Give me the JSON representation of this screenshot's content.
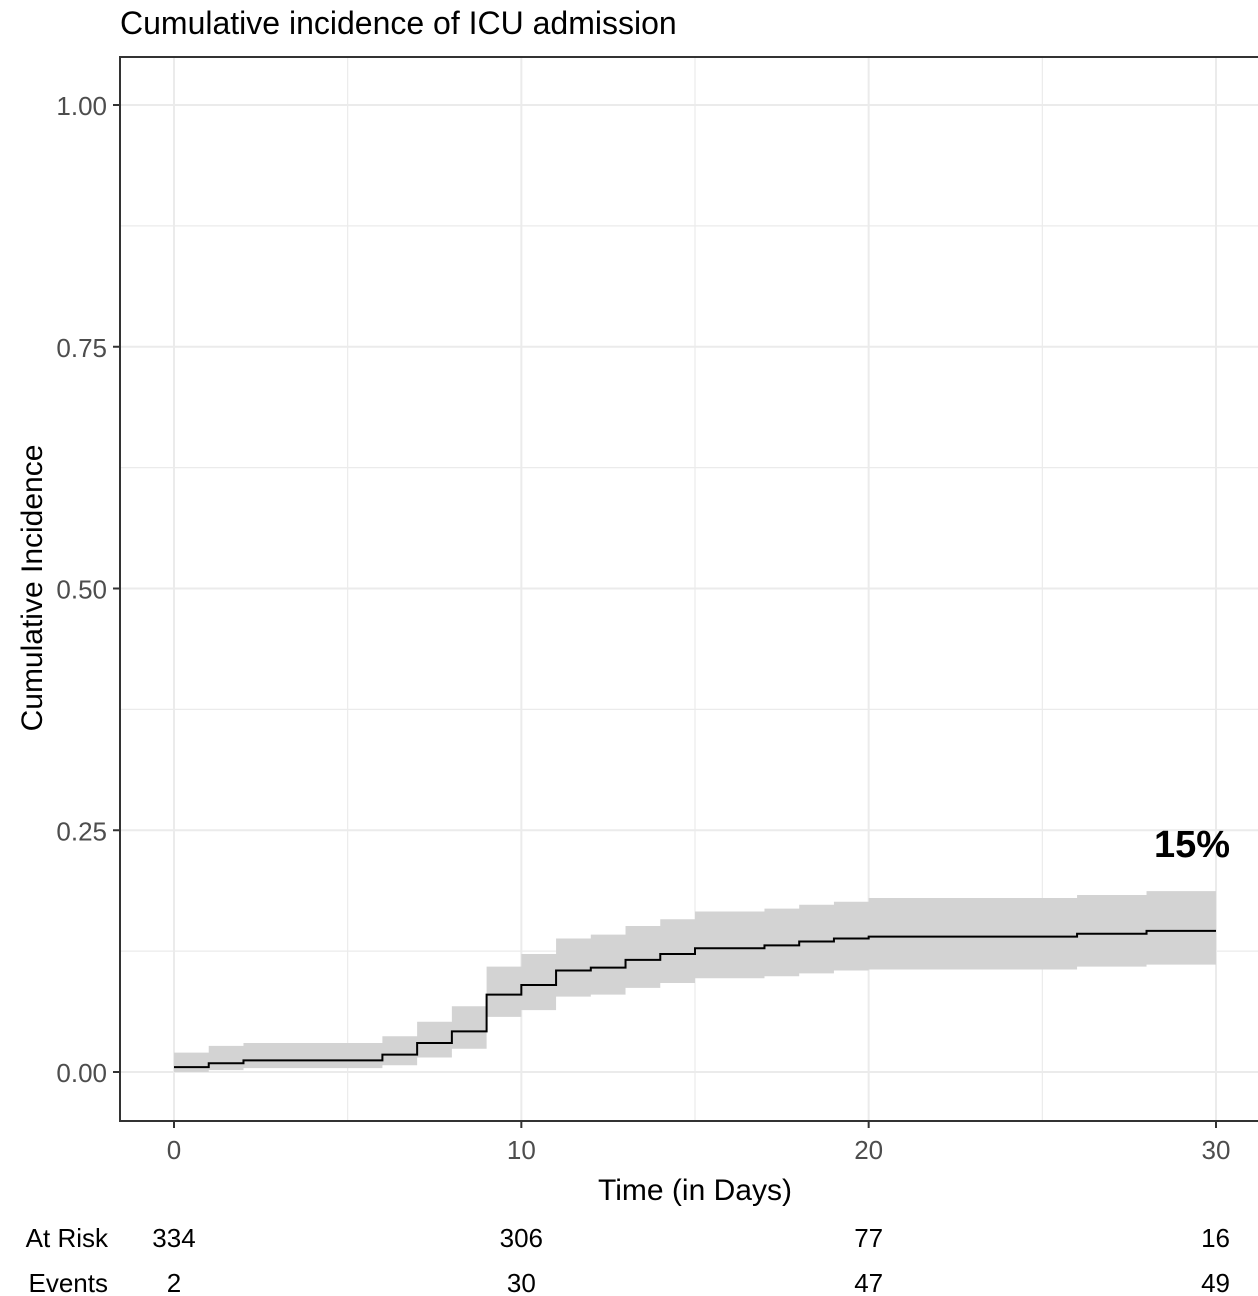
{
  "chart_data": {
    "type": "line",
    "title": "Cumulative incidence of ICU admission",
    "xlabel": "Time (in Days)",
    "ylabel": "Cumulative Incidence",
    "xlim": [
      -1.5,
      31.5
    ],
    "ylim": [
      -0.05,
      1.05
    ],
    "x_ticks": [
      0,
      10,
      20,
      30
    ],
    "x_tick_labels": [
      "0",
      "10",
      "20",
      "30"
    ],
    "y_ticks": [
      0,
      0.25,
      0.5,
      0.75,
      1.0
    ],
    "y_tick_labels": [
      "0.00",
      "0.25",
      "0.50",
      "0.75",
      "1.00"
    ],
    "grid": true,
    "annotation": {
      "text": "15%",
      "x": 30,
      "y": 0.24
    },
    "series": [
      {
        "step": [
          {
            "x": 0,
            "y": 0.005,
            "lower": 0.0,
            "upper": 0.02
          },
          {
            "x": 1,
            "y": 0.009,
            "lower": 0.002,
            "upper": 0.027
          },
          {
            "x": 2,
            "y": 0.012,
            "lower": 0.004,
            "upper": 0.03
          },
          {
            "x": 6,
            "y": 0.018,
            "lower": 0.007,
            "upper": 0.037
          },
          {
            "x": 7,
            "y": 0.03,
            "lower": 0.015,
            "upper": 0.052
          },
          {
            "x": 8,
            "y": 0.042,
            "lower": 0.024,
            "upper": 0.068
          },
          {
            "x": 9,
            "y": 0.08,
            "lower": 0.057,
            "upper": 0.109
          },
          {
            "x": 10,
            "y": 0.09,
            "lower": 0.064,
            "upper": 0.122
          },
          {
            "x": 11,
            "y": 0.105,
            "lower": 0.078,
            "upper": 0.138
          },
          {
            "x": 12,
            "y": 0.108,
            "lower": 0.08,
            "upper": 0.142
          },
          {
            "x": 13,
            "y": 0.116,
            "lower": 0.087,
            "upper": 0.151
          },
          {
            "x": 14,
            "y": 0.122,
            "lower": 0.092,
            "upper": 0.158
          },
          {
            "x": 15,
            "y": 0.128,
            "lower": 0.097,
            "upper": 0.166
          },
          {
            "x": 17,
            "y": 0.131,
            "lower": 0.099,
            "upper": 0.169
          },
          {
            "x": 18,
            "y": 0.135,
            "lower": 0.102,
            "upper": 0.173
          },
          {
            "x": 19,
            "y": 0.138,
            "lower": 0.105,
            "upper": 0.176
          },
          {
            "x": 20,
            "y": 0.14,
            "lower": 0.106,
            "upper": 0.18
          },
          {
            "x": 26,
            "y": 0.143,
            "lower": 0.109,
            "upper": 0.183
          },
          {
            "x": 28,
            "y": 0.146,
            "lower": 0.111,
            "upper": 0.187
          },
          {
            "x": 30,
            "y": 0.146,
            "lower": 0.111,
            "upper": 0.187
          }
        ]
      }
    ],
    "risk_table": {
      "rows": [
        {
          "label": "At Risk",
          "values": [
            "334",
            "306",
            "77",
            "16"
          ]
        },
        {
          "label": "Events",
          "values": [
            "2",
            "30",
            "47",
            "49"
          ]
        }
      ],
      "times": [
        0,
        10,
        20,
        30
      ]
    },
    "colors": {
      "line": "#000000",
      "band": "#d3d3d3",
      "grid": "#ebebeb",
      "axis_text": "#4d4d4d"
    }
  }
}
